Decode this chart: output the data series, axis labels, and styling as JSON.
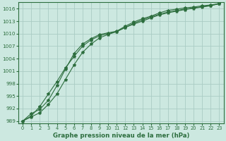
{
  "xlabel": "Graphe pression niveau de la mer (hPa)",
  "bg_color": "#cce8e0",
  "grid_color": "#aaccC4",
  "line_color": "#2d6e3e",
  "xlim": [
    -0.5,
    23.5
  ],
  "ylim": [
    988.5,
    1017.5
  ],
  "yticks": [
    989,
    992,
    995,
    998,
    1001,
    1004,
    1007,
    1010,
    1013,
    1016
  ],
  "xticks": [
    0,
    1,
    2,
    3,
    4,
    5,
    6,
    7,
    8,
    9,
    10,
    11,
    12,
    13,
    14,
    15,
    16,
    17,
    18,
    19,
    20,
    21,
    22,
    23
  ],
  "line1_x": [
    0,
    1,
    2,
    3,
    4,
    5,
    6,
    7,
    8,
    9,
    10,
    11,
    12,
    13,
    14,
    15,
    16,
    17,
    18,
    19,
    20,
    21,
    22,
    23
  ],
  "line1_y": [
    989.0,
    990.8,
    991.8,
    994.0,
    997.5,
    1001.5,
    1005.2,
    1007.5,
    1008.8,
    1009.8,
    1010.2,
    1010.6,
    1011.8,
    1012.8,
    1013.6,
    1014.2,
    1015.0,
    1015.6,
    1015.9,
    1016.2,
    1016.4,
    1016.7,
    1016.9,
    1017.2
  ],
  "line2_x": [
    0,
    1,
    2,
    3,
    4,
    5,
    6,
    7,
    8,
    9,
    10,
    11,
    12,
    13,
    14,
    15,
    16,
    17,
    18,
    19,
    20,
    21,
    22,
    23
  ],
  "line2_y": [
    989.0,
    990.2,
    992.5,
    995.5,
    998.5,
    1001.8,
    1004.5,
    1007.0,
    1008.5,
    1009.5,
    1010.0,
    1010.5,
    1011.5,
    1012.5,
    1013.3,
    1014.0,
    1014.7,
    1015.2,
    1015.6,
    1015.9,
    1016.2,
    1016.5,
    1016.8,
    1017.2
  ],
  "line3_x": [
    0,
    1,
    2,
    3,
    4,
    5,
    6,
    7,
    8,
    9,
    10,
    11,
    12,
    13,
    14,
    15,
    16,
    17,
    18,
    19,
    20,
    21,
    22,
    23
  ],
  "line3_y": [
    989.0,
    990.0,
    991.0,
    993.0,
    995.5,
    999.0,
    1002.5,
    1005.5,
    1007.5,
    1009.0,
    1009.8,
    1010.5,
    1011.5,
    1012.3,
    1013.0,
    1013.8,
    1014.5,
    1015.0,
    1015.4,
    1015.8,
    1016.1,
    1016.4,
    1016.7,
    1017.2
  ]
}
